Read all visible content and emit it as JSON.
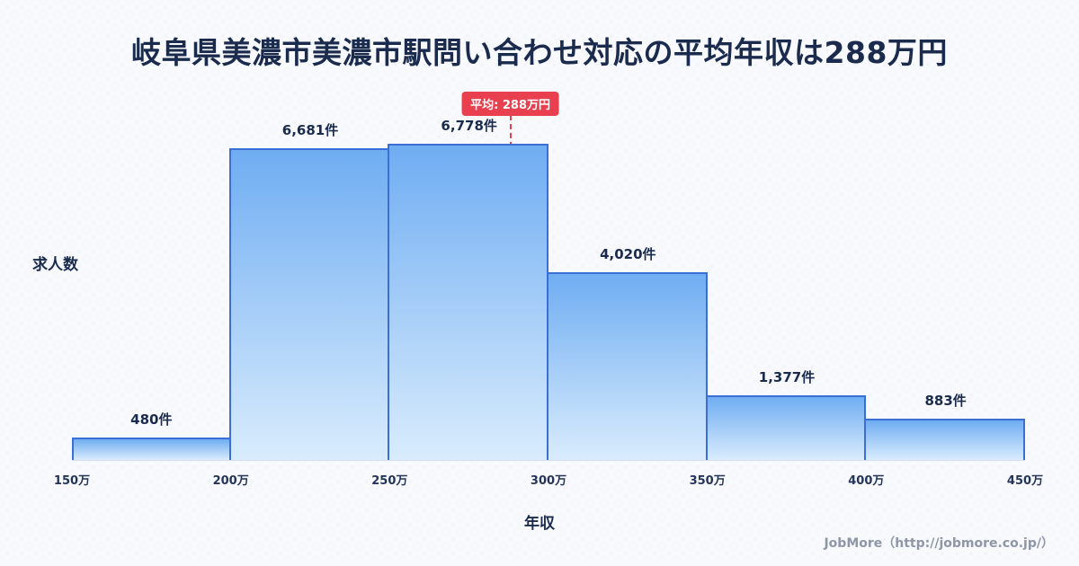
{
  "title": "岐阜県美濃市美濃市駅問い合わせ対応の平均年収は288万円",
  "chart_data": {
    "type": "bar",
    "title": "岐阜県美濃市美濃市駅問い合わせ対応の平均年収は288万円",
    "xlabel": "年収",
    "ylabel": "求人数",
    "bin_edge_labels": [
      "150万",
      "200万",
      "250万",
      "300万",
      "350万",
      "400万",
      "450万"
    ],
    "bins": [
      "150万-200万",
      "200万-250万",
      "250万-300万",
      "300万-350万",
      "350万-400万",
      "400万-450万"
    ],
    "values": [
      480,
      6681,
      6778,
      4020,
      1377,
      883
    ],
    "value_labels": [
      "480件",
      "6,681件",
      "6,778件",
      "4,020件",
      "1,377件",
      "883件"
    ],
    "x_range": [
      150,
      450
    ],
    "mean": {
      "value": 288,
      "label": "平均: 288万円"
    },
    "grid": false,
    "legend": false,
    "colors": {
      "bar_top": "#6fadf2",
      "bar_bottom": "#d9ecfd",
      "bar_border": "#3b6fd6",
      "mean_line": "#e8404f",
      "title_text": "#1a2b4d"
    }
  },
  "footer": {
    "credit": "JobMore（http://jobmore.co.jp/）"
  }
}
